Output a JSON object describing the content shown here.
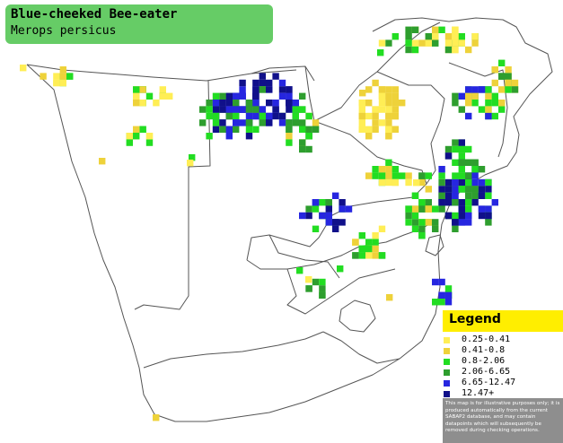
{
  "title": {
    "common_name": "Blue-cheeked Bee-eater",
    "scientific_name": "Merops persicus"
  },
  "legend": {
    "title": "Legend",
    "items": [
      {
        "label": "0.25-0.41",
        "color": "#ffee55"
      },
      {
        "label": "0.41-0.8",
        "color": "#eed23a"
      },
      {
        "label": "0.8-2.06",
        "color": "#22dd22"
      },
      {
        "label": "2.06-6.65",
        "color": "#2e9e2e"
      },
      {
        "label": "6.65-12.47",
        "color": "#2626e0"
      },
      {
        "label": "12.47+",
        "color": "#10108a"
      }
    ],
    "note": "This map is for illustrative purposes only; it is produced automatically from the current SABAP2 database, and may contain datapoints which will subsequently be removed during checking operations."
  },
  "colors": {
    "title_background": "#66cc66",
    "legend_header": "#ffee00",
    "note_background": "#8e8e8e",
    "border_lines": "#555555"
  }
}
